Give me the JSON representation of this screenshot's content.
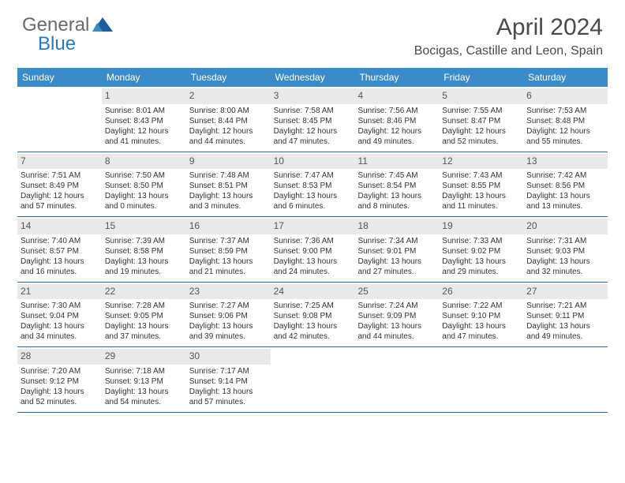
{
  "logo": {
    "part1": "General",
    "part2": "Blue"
  },
  "title": "April 2024",
  "location": "Bocigas, Castille and Leon, Spain",
  "colors": {
    "header_bg": "#3b8bc9",
    "header_text": "#ffffff",
    "daynum_bg": "#e9e9e9",
    "border": "#2a6aa0",
    "text": "#333333",
    "logo_gray": "#6a6a6a",
    "logo_blue": "#2a7ab8"
  },
  "typography": {
    "title_fontsize": 30,
    "location_fontsize": 16,
    "header_fontsize": 12,
    "cell_fontsize": 10
  },
  "day_headers": [
    "Sunday",
    "Monday",
    "Tuesday",
    "Wednesday",
    "Thursday",
    "Friday",
    "Saturday"
  ],
  "weeks": [
    [
      {
        "num": "",
        "lines": []
      },
      {
        "num": "1",
        "lines": [
          "Sunrise: 8:01 AM",
          "Sunset: 8:43 PM",
          "Daylight: 12 hours",
          "and 41 minutes."
        ]
      },
      {
        "num": "2",
        "lines": [
          "Sunrise: 8:00 AM",
          "Sunset: 8:44 PM",
          "Daylight: 12 hours",
          "and 44 minutes."
        ]
      },
      {
        "num": "3",
        "lines": [
          "Sunrise: 7:58 AM",
          "Sunset: 8:45 PM",
          "Daylight: 12 hours",
          "and 47 minutes."
        ]
      },
      {
        "num": "4",
        "lines": [
          "Sunrise: 7:56 AM",
          "Sunset: 8:46 PM",
          "Daylight: 12 hours",
          "and 49 minutes."
        ]
      },
      {
        "num": "5",
        "lines": [
          "Sunrise: 7:55 AM",
          "Sunset: 8:47 PM",
          "Daylight: 12 hours",
          "and 52 minutes."
        ]
      },
      {
        "num": "6",
        "lines": [
          "Sunrise: 7:53 AM",
          "Sunset: 8:48 PM",
          "Daylight: 12 hours",
          "and 55 minutes."
        ]
      }
    ],
    [
      {
        "num": "7",
        "lines": [
          "Sunrise: 7:51 AM",
          "Sunset: 8:49 PM",
          "Daylight: 12 hours",
          "and 57 minutes."
        ]
      },
      {
        "num": "8",
        "lines": [
          "Sunrise: 7:50 AM",
          "Sunset: 8:50 PM",
          "Daylight: 13 hours",
          "and 0 minutes."
        ]
      },
      {
        "num": "9",
        "lines": [
          "Sunrise: 7:48 AM",
          "Sunset: 8:51 PM",
          "Daylight: 13 hours",
          "and 3 minutes."
        ]
      },
      {
        "num": "10",
        "lines": [
          "Sunrise: 7:47 AM",
          "Sunset: 8:53 PM",
          "Daylight: 13 hours",
          "and 6 minutes."
        ]
      },
      {
        "num": "11",
        "lines": [
          "Sunrise: 7:45 AM",
          "Sunset: 8:54 PM",
          "Daylight: 13 hours",
          "and 8 minutes."
        ]
      },
      {
        "num": "12",
        "lines": [
          "Sunrise: 7:43 AM",
          "Sunset: 8:55 PM",
          "Daylight: 13 hours",
          "and 11 minutes."
        ]
      },
      {
        "num": "13",
        "lines": [
          "Sunrise: 7:42 AM",
          "Sunset: 8:56 PM",
          "Daylight: 13 hours",
          "and 13 minutes."
        ]
      }
    ],
    [
      {
        "num": "14",
        "lines": [
          "Sunrise: 7:40 AM",
          "Sunset: 8:57 PM",
          "Daylight: 13 hours",
          "and 16 minutes."
        ]
      },
      {
        "num": "15",
        "lines": [
          "Sunrise: 7:39 AM",
          "Sunset: 8:58 PM",
          "Daylight: 13 hours",
          "and 19 minutes."
        ]
      },
      {
        "num": "16",
        "lines": [
          "Sunrise: 7:37 AM",
          "Sunset: 8:59 PM",
          "Daylight: 13 hours",
          "and 21 minutes."
        ]
      },
      {
        "num": "17",
        "lines": [
          "Sunrise: 7:36 AM",
          "Sunset: 9:00 PM",
          "Daylight: 13 hours",
          "and 24 minutes."
        ]
      },
      {
        "num": "18",
        "lines": [
          "Sunrise: 7:34 AM",
          "Sunset: 9:01 PM",
          "Daylight: 13 hours",
          "and 27 minutes."
        ]
      },
      {
        "num": "19",
        "lines": [
          "Sunrise: 7:33 AM",
          "Sunset: 9:02 PM",
          "Daylight: 13 hours",
          "and 29 minutes."
        ]
      },
      {
        "num": "20",
        "lines": [
          "Sunrise: 7:31 AM",
          "Sunset: 9:03 PM",
          "Daylight: 13 hours",
          "and 32 minutes."
        ]
      }
    ],
    [
      {
        "num": "21",
        "lines": [
          "Sunrise: 7:30 AM",
          "Sunset: 9:04 PM",
          "Daylight: 13 hours",
          "and 34 minutes."
        ]
      },
      {
        "num": "22",
        "lines": [
          "Sunrise: 7:28 AM",
          "Sunset: 9:05 PM",
          "Daylight: 13 hours",
          "and 37 minutes."
        ]
      },
      {
        "num": "23",
        "lines": [
          "Sunrise: 7:27 AM",
          "Sunset: 9:06 PM",
          "Daylight: 13 hours",
          "and 39 minutes."
        ]
      },
      {
        "num": "24",
        "lines": [
          "Sunrise: 7:25 AM",
          "Sunset: 9:08 PM",
          "Daylight: 13 hours",
          "and 42 minutes."
        ]
      },
      {
        "num": "25",
        "lines": [
          "Sunrise: 7:24 AM",
          "Sunset: 9:09 PM",
          "Daylight: 13 hours",
          "and 44 minutes."
        ]
      },
      {
        "num": "26",
        "lines": [
          "Sunrise: 7:22 AM",
          "Sunset: 9:10 PM",
          "Daylight: 13 hours",
          "and 47 minutes."
        ]
      },
      {
        "num": "27",
        "lines": [
          "Sunrise: 7:21 AM",
          "Sunset: 9:11 PM",
          "Daylight: 13 hours",
          "and 49 minutes."
        ]
      }
    ],
    [
      {
        "num": "28",
        "lines": [
          "Sunrise: 7:20 AM",
          "Sunset: 9:12 PM",
          "Daylight: 13 hours",
          "and 52 minutes."
        ]
      },
      {
        "num": "29",
        "lines": [
          "Sunrise: 7:18 AM",
          "Sunset: 9:13 PM",
          "Daylight: 13 hours",
          "and 54 minutes."
        ]
      },
      {
        "num": "30",
        "lines": [
          "Sunrise: 7:17 AM",
          "Sunset: 9:14 PM",
          "Daylight: 13 hours",
          "and 57 minutes."
        ]
      },
      {
        "num": "",
        "lines": []
      },
      {
        "num": "",
        "lines": []
      },
      {
        "num": "",
        "lines": []
      },
      {
        "num": "",
        "lines": []
      }
    ]
  ]
}
